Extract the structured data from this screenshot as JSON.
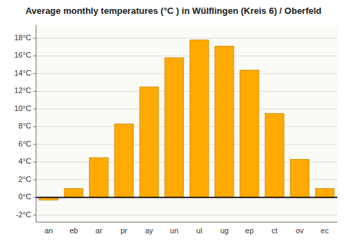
{
  "chart_data": {
    "type": "bar",
    "title": "Average monthly temperatures (°C ) in Wülflingen (Kreis 6) / Oberfeld",
    "categories": [
      "an",
      "eb",
      "ar",
      "pr",
      "ay",
      "un",
      "ul",
      "ug",
      "ep",
      "ct",
      "ov",
      "ec"
    ],
    "values": [
      -0.3,
      1.0,
      4.5,
      8.3,
      12.5,
      15.8,
      17.8,
      17.1,
      14.4,
      9.5,
      4.3,
      1.0
    ],
    "color": "#FFAA00",
    "ylim": [
      -2.8,
      19.5
    ],
    "yticks": [
      {
        "value": -2,
        "label": "-2°C"
      },
      {
        "value": 0,
        "label": "0°C"
      },
      {
        "value": 2,
        "label": "2°C"
      },
      {
        "value": 4,
        "label": "4°C"
      },
      {
        "value": 6,
        "label": "6°C"
      },
      {
        "value": 8,
        "label": "8°C"
      },
      {
        "value": 10,
        "label": "10°C"
      },
      {
        "value": 12,
        "label": "12°C"
      },
      {
        "value": 14,
        "label": "14°C"
      },
      {
        "value": 16,
        "label": "16°C"
      },
      {
        "value": 18,
        "label": "18°C"
      }
    ],
    "grid": true
  }
}
